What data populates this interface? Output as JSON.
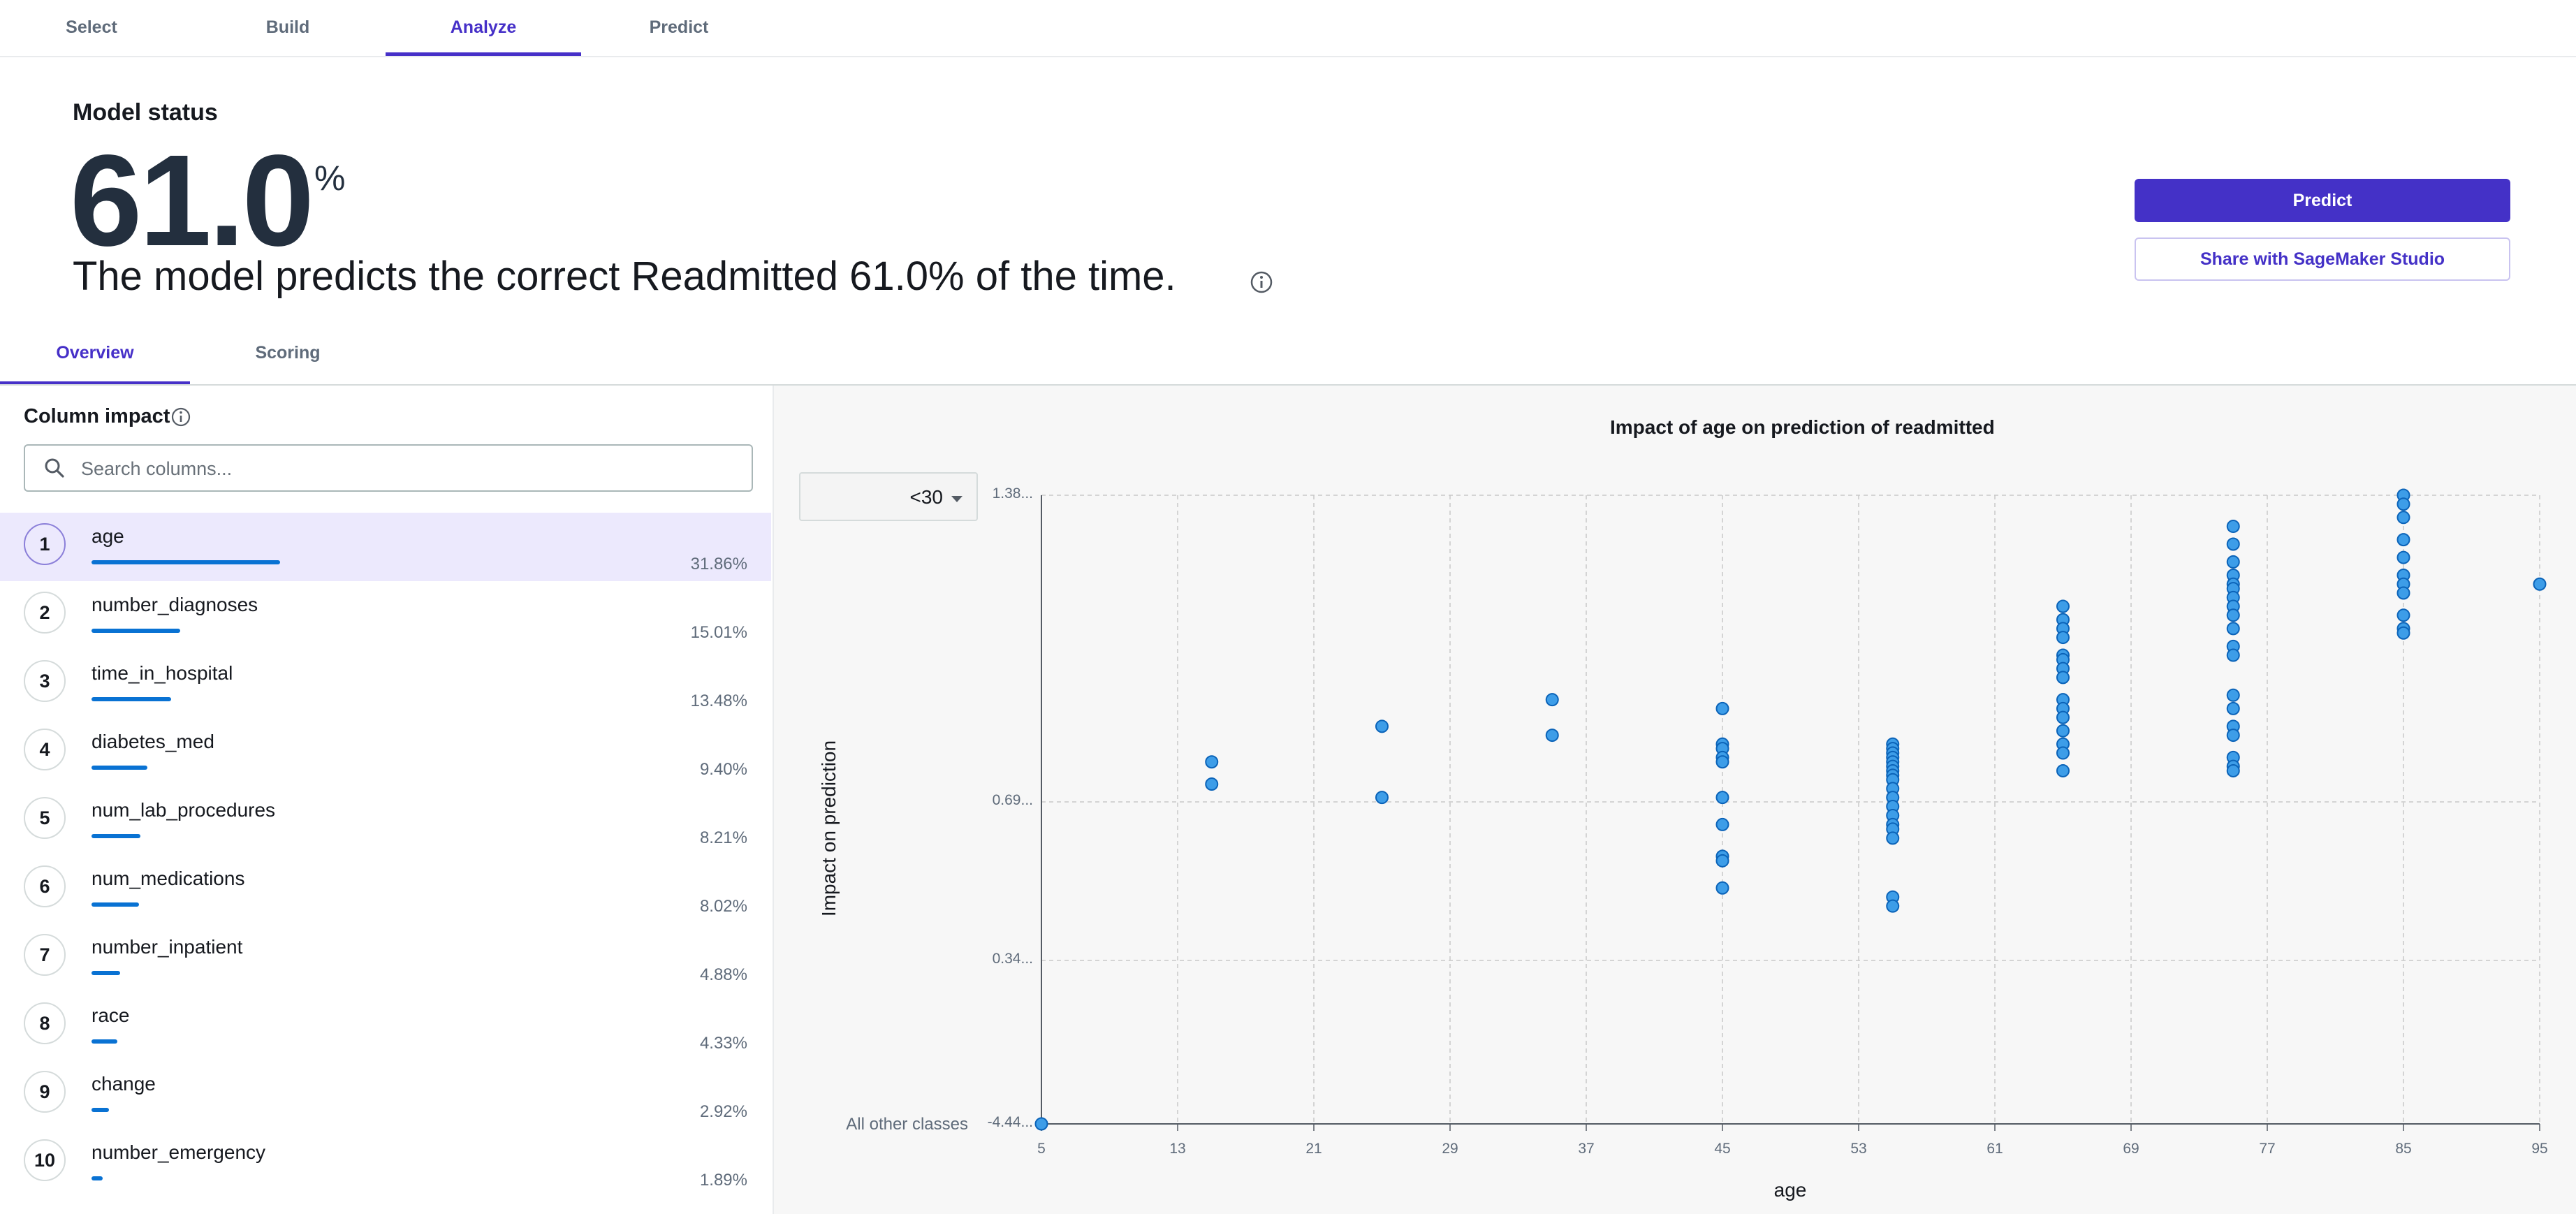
{
  "nav": {
    "tabs": [
      "Select",
      "Build",
      "Analyze",
      "Predict"
    ],
    "active": "Analyze"
  },
  "status": {
    "title": "Model status",
    "value": "61.0",
    "value_unit": "%",
    "sentence": "The model predicts the correct Readmitted 61.0% of the time."
  },
  "buttons": {
    "predict": "Predict",
    "share": "Share with SageMaker Studio"
  },
  "subtabs": [
    "Overview",
    "Scoring"
  ],
  "column_impact": {
    "title": "Column impact",
    "search_placeholder": "Search columns...",
    "items": [
      {
        "rank": "1",
        "name": "age",
        "pct": "31.86%",
        "value": 31.86
      },
      {
        "rank": "2",
        "name": "number_diagnoses",
        "pct": "15.01%",
        "value": 15.01
      },
      {
        "rank": "3",
        "name": "time_in_hospital",
        "pct": "13.48%",
        "value": 13.48
      },
      {
        "rank": "4",
        "name": "diabetes_med",
        "pct": "9.40%",
        "value": 9.4
      },
      {
        "rank": "5",
        "name": "num_lab_procedures",
        "pct": "8.21%",
        "value": 8.21
      },
      {
        "rank": "6",
        "name": "num_medications",
        "pct": "8.02%",
        "value": 8.02
      },
      {
        "rank": "7",
        "name": "number_inpatient",
        "pct": "4.88%",
        "value": 4.88
      },
      {
        "rank": "8",
        "name": "race",
        "pct": "4.33%",
        "value": 4.33
      },
      {
        "rank": "9",
        "name": "change",
        "pct": "2.92%",
        "value": 2.92
      },
      {
        "rank": "10",
        "name": "number_emergency",
        "pct": "1.89%",
        "value": 1.89
      }
    ]
  },
  "class_select": {
    "value": "<30"
  },
  "colors": {
    "accent": "#4431c7",
    "point": "#3d9de8",
    "point_stroke": "#0b63b8",
    "bar": "#0972d3"
  },
  "chart_data": {
    "type": "scatter",
    "title": "Impact of age on prediction of readmitted",
    "xlabel": "age",
    "ylabel": "Impact on prediction",
    "x_ticks": [
      "5",
      "13",
      "21",
      "29",
      "37",
      "45",
      "53",
      "61",
      "69",
      "77",
      "85",
      "95"
    ],
    "y_ticks": [
      {
        "label": "1.38...",
        "value": 1.38
      },
      {
        "label": "0.69...",
        "value": 0.69
      },
      {
        "label": "0.34...",
        "value": 0.34
      },
      {
        "label": "-4.44...",
        "value": 0.0
      }
    ],
    "y_bottom_note": "All other classes",
    "grid": true,
    "points": [
      [
        5,
        0.0
      ],
      [
        15,
        0.78
      ],
      [
        15,
        0.73
      ],
      [
        25,
        0.86
      ],
      [
        25,
        0.7
      ],
      [
        35,
        0.92
      ],
      [
        35,
        0.84
      ],
      [
        45,
        0.9
      ],
      [
        45,
        0.82
      ],
      [
        45,
        0.81
      ],
      [
        45,
        0.79
      ],
      [
        45,
        0.78
      ],
      [
        45,
        0.7
      ],
      [
        45,
        0.64
      ],
      [
        45,
        0.57
      ],
      [
        45,
        0.56
      ],
      [
        45,
        0.5
      ],
      [
        55,
        0.82
      ],
      [
        55,
        0.81
      ],
      [
        55,
        0.8
      ],
      [
        55,
        0.79
      ],
      [
        55,
        0.78
      ],
      [
        55,
        0.77
      ],
      [
        55,
        0.76
      ],
      [
        55,
        0.75
      ],
      [
        55,
        0.74
      ],
      [
        55,
        0.72
      ],
      [
        55,
        0.7
      ],
      [
        55,
        0.68
      ],
      [
        55,
        0.66
      ],
      [
        55,
        0.64
      ],
      [
        55,
        0.63
      ],
      [
        55,
        0.61
      ],
      [
        55,
        0.48
      ],
      [
        55,
        0.46
      ],
      [
        65,
        1.13
      ],
      [
        65,
        1.1
      ],
      [
        65,
        1.08
      ],
      [
        65,
        1.06
      ],
      [
        65,
        1.02
      ],
      [
        65,
        1.01
      ],
      [
        65,
        0.99
      ],
      [
        65,
        0.97
      ],
      [
        65,
        0.92
      ],
      [
        65,
        0.9
      ],
      [
        65,
        0.88
      ],
      [
        65,
        0.85
      ],
      [
        65,
        0.82
      ],
      [
        65,
        0.8
      ],
      [
        65,
        0.76
      ],
      [
        75,
        1.31
      ],
      [
        75,
        1.27
      ],
      [
        75,
        1.23
      ],
      [
        75,
        1.2
      ],
      [
        75,
        1.18
      ],
      [
        75,
        1.17
      ],
      [
        75,
        1.15
      ],
      [
        75,
        1.13
      ],
      [
        75,
        1.11
      ],
      [
        75,
        1.08
      ],
      [
        75,
        1.04
      ],
      [
        75,
        1.02
      ],
      [
        75,
        0.93
      ],
      [
        75,
        0.9
      ],
      [
        75,
        0.86
      ],
      [
        75,
        0.84
      ],
      [
        75,
        0.79
      ],
      [
        75,
        0.77
      ],
      [
        75,
        0.76
      ],
      [
        85,
        1.38
      ],
      [
        85,
        1.36
      ],
      [
        85,
        1.33
      ],
      [
        85,
        1.28
      ],
      [
        85,
        1.24
      ],
      [
        85,
        1.2
      ],
      [
        85,
        1.18
      ],
      [
        85,
        1.16
      ],
      [
        85,
        1.11
      ],
      [
        85,
        1.08
      ],
      [
        85,
        1.07
      ],
      [
        95,
        1.18
      ]
    ]
  }
}
